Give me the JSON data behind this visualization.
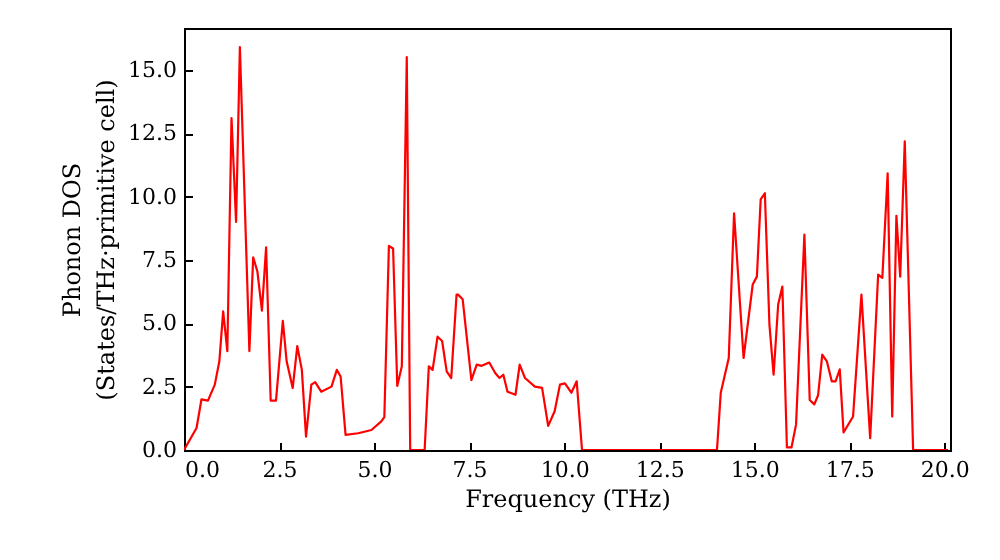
{
  "chart_data": {
    "type": "line",
    "xlabel": "Frequency (THz)",
    "ylabel": "Phonon DOS\n(States/THz·primitive cell)",
    "x": [
      0,
      0.33,
      0.46,
      0.63,
      0.81,
      0.93,
      1.03,
      1.14,
      1.25,
      1.37,
      1.47,
      1.72,
      1.82,
      1.93,
      2.05,
      2.16,
      2.28,
      2.42,
      2.6,
      2.7,
      2.86,
      2.98,
      3.1,
      3.21,
      3.35,
      3.45,
      3.61,
      3.88,
      4.02,
      4.12,
      4.25,
      4.58,
      4.93,
      5.19,
      5.27,
      5.39,
      5.5,
      5.61,
      5.73,
      5.86,
      5.95,
      6.33,
      6.44,
      6.54,
      6.67,
      6.79,
      6.91,
      7.03,
      7.17,
      7.21,
      7.33,
      7.56,
      7.7,
      7.83,
      8.03,
      8.19,
      8.3,
      8.4,
      8.51,
      8.72,
      8.83,
      8.97,
      9.23,
      9.42,
      9.58,
      9.75,
      9.89,
      10.02,
      10.19,
      10.33,
      10.47,
      14.02,
      14.12,
      14.33,
      14.47,
      14.72,
      14.96,
      15.07,
      15.17,
      15.28,
      15.4,
      15.51,
      15.63,
      15.74,
      15.86,
      15.98,
      16.1,
      16.32,
      16.46,
      16.58,
      16.68,
      16.79,
      16.91,
      17.04,
      17.14,
      17.25,
      17.35,
      17.6,
      17.82,
      18.05,
      18.26,
      18.37,
      18.51,
      18.63,
      18.74,
      18.84,
      18.96,
      19.18,
      20.1
    ],
    "series": [
      {
        "color": "#ff0000",
        "values": [
          0,
          0.87,
          2.0,
          1.95,
          2.58,
          3.5,
          5.47,
          3.9,
          13.1,
          9.0,
          15.9,
          3.9,
          7.6,
          7.05,
          5.5,
          8.0,
          1.95,
          1.95,
          5.1,
          3.5,
          2.45,
          4.1,
          3.16,
          0.53,
          2.58,
          2.68,
          2.3,
          2.5,
          3.16,
          2.9,
          0.6,
          0.66,
          0.79,
          1.13,
          1.3,
          8.05,
          7.95,
          2.53,
          3.3,
          15.5,
          0,
          0,
          3.3,
          3.16,
          4.47,
          4.3,
          3.1,
          2.84,
          6.13,
          6.13,
          5.95,
          2.76,
          3.37,
          3.32,
          3.45,
          3.03,
          2.84,
          2.97,
          2.3,
          2.18,
          3.37,
          2.84,
          2.5,
          2.45,
          0.95,
          1.53,
          2.58,
          2.63,
          2.26,
          2.71,
          0,
          0,
          2.26,
          3.63,
          9.34,
          3.63,
          6.53,
          6.84,
          9.89,
          10.13,
          4.95,
          2.97,
          5.74,
          6.45,
          0.1,
          0.1,
          1.0,
          8.5,
          1.97,
          1.8,
          2.16,
          3.76,
          3.5,
          2.71,
          2.71,
          3.18,
          0.69,
          1.32,
          6.13,
          0.47,
          6.92,
          6.79,
          10.92,
          1.32,
          9.24,
          6.84,
          12.18,
          0,
          0
        ]
      }
    ],
    "xlim": [
      0,
      20.15
    ],
    "ylim": [
      0,
      16.65
    ],
    "xticks": [
      {
        "value": 0,
        "label": "0.0"
      },
      {
        "value": 2.5,
        "label": "2.5"
      },
      {
        "value": 5,
        "label": "5.0"
      },
      {
        "value": 7.5,
        "label": "7.5"
      },
      {
        "value": 10,
        "label": "10.0"
      },
      {
        "value": 12.5,
        "label": "12.5"
      },
      {
        "value": 15,
        "label": "15.0"
      },
      {
        "value": 17.5,
        "label": "17.5"
      },
      {
        "value": 20,
        "label": "20.0"
      }
    ],
    "yticks": [
      {
        "value": 0,
        "label": "0.0"
      },
      {
        "value": 2.5,
        "label": "2.5"
      },
      {
        "value": 5,
        "label": "5.0"
      },
      {
        "value": 7.5,
        "label": "7.5"
      },
      {
        "value": 10,
        "label": "10.0"
      },
      {
        "value": 12.5,
        "label": "12.5"
      },
      {
        "value": 15,
        "label": "15.0"
      }
    ],
    "grid": false
  }
}
